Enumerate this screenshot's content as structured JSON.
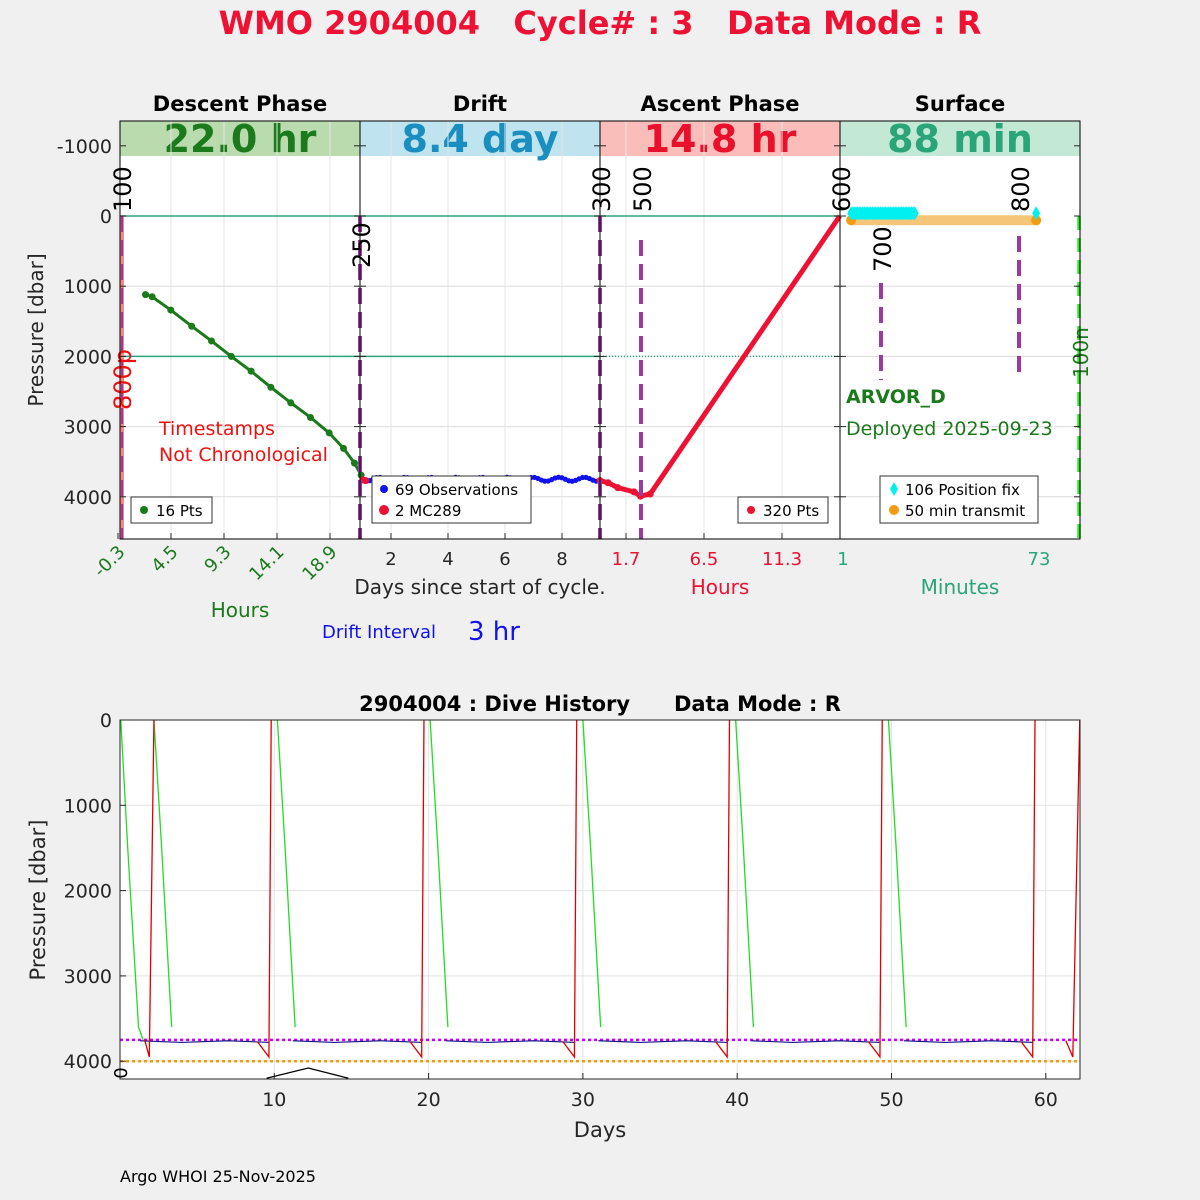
{
  "title": "WMO 2904004   Cycle# : 3   Data Mode : R",
  "top_axis": {
    "ylabel": "Pressure [dbar]",
    "yticks": [
      "-1000",
      "0",
      "1000",
      "2000",
      "3000",
      "4000"
    ]
  },
  "panels": [
    {
      "name": "Descent Phase",
      "duration": "22.0 hr",
      "band_color": "#b9dbae",
      "text_color": "#1b7a1b",
      "xticks": [
        "-0.3",
        "4.5",
        "9.3",
        "14.1",
        "18.9"
      ],
      "xlabel": "Hours",
      "legend": [
        "16 Pts"
      ],
      "annotation": "Timestamps\nNot Chronological",
      "marker_labels": [
        "100",
        "800p"
      ]
    },
    {
      "name": "Drift",
      "duration": "8.4 day",
      "band_color": "#bfe3ef",
      "text_color": "#1a8fbf",
      "xticks": [
        "2",
        "4",
        "6",
        "8"
      ],
      "xlabel": "Days since start of cycle.",
      "legend": [
        "69 Observations",
        "2 MC289"
      ],
      "marker_labels": [
        "250"
      ]
    },
    {
      "name": "Ascent Phase",
      "duration": "14.8 hr",
      "band_color": "#fbbdb9",
      "text_color": "#e8102a",
      "xticks": [
        "1.7",
        "6.5",
        "11.3"
      ],
      "xlabel": "Hours",
      "legend": [
        "320 Pts"
      ],
      "marker_labels": [
        "300",
        "500"
      ]
    },
    {
      "name": "Surface",
      "duration": "88 min",
      "band_color": "#c4e8d6",
      "text_color": "#2aa57a",
      "xticks": [
        "1",
        "73"
      ],
      "xlabel": "Minutes",
      "legend": [
        "106 Position fix",
        "50 min transmit"
      ],
      "marker_labels": [
        "600",
        "700",
        "800",
        "100n"
      ],
      "float_type": "ARVOR_D",
      "deployed": "Deployed 2025-09-23"
    }
  ],
  "drift_interval": {
    "label": "Drift Interval",
    "value": "3 hr"
  },
  "history": {
    "title": "2904004 : Dive History      Data Mode : R",
    "xlabel": "Days",
    "ylabel": "Pressure [dbar]",
    "xticks": [
      "10",
      "20",
      "30",
      "40",
      "50",
      "60"
    ],
    "yticks": [
      "0",
      "1000",
      "2000",
      "3000",
      "4000"
    ],
    "zero_label": "0"
  },
  "footer": "Argo WHOI 25-Nov-2025",
  "chart_data": [
    {
      "type": "line",
      "title": "Descent Phase",
      "xlabel": "Hours",
      "ylabel": "Pressure [dbar]",
      "ylim": [
        4600,
        -1300
      ],
      "xlim": [
        -0.3,
        22.5
      ],
      "x": [
        2.2,
        2.8,
        4.5,
        6.4,
        8.2,
        10.0,
        11.8,
        13.6,
        15.4,
        17.2,
        18.9,
        20.2,
        21.2,
        21.8
      ],
      "y": [
        1120,
        1150,
        1340,
        1570,
        1780,
        2000,
        2210,
        2440,
        2660,
        2870,
        3090,
        3310,
        3520,
        3690
      ]
    },
    {
      "type": "scatter",
      "title": "Drift",
      "xlabel": "Days since start of cycle.",
      "xlim": [
        0.9,
        9.3
      ],
      "series": [
        {
          "name": "69 Observations",
          "x_range": [
            1.0,
            9.3
          ],
          "y": 3750
        },
        {
          "name": "2 MC289",
          "x": [
            1.0,
            1.1
          ],
          "y": [
            3760,
            3770
          ]
        }
      ]
    },
    {
      "type": "line",
      "title": "Ascent Phase",
      "xlabel": "Hours",
      "xlim": [
        0.1,
        14.9
      ],
      "x": [
        0.1,
        0.6,
        1.2,
        2.2,
        2.6,
        3.2,
        14.9
      ],
      "y": [
        3770,
        3800,
        3870,
        3930,
        3990,
        3960,
        0
      ]
    },
    {
      "type": "scatter",
      "title": "Surface",
      "xlabel": "Minutes",
      "xlim": [
        1,
        89
      ],
      "series": [
        {
          "name": "106 Position fix",
          "x_range": [
            4,
            28
          ],
          "y": -40
        },
        {
          "name": "50 min transmit",
          "x_range": [
            4,
            72
          ],
          "y": 60
        }
      ]
    },
    {
      "type": "line",
      "title": "2904004 : Dive History      Data Mode : R",
      "xlabel": "Days",
      "ylabel": "Pressure [dbar]",
      "xlim": [
        0,
        62.2
      ],
      "ylim": [
        4200,
        0
      ],
      "reference_lines": [
        {
          "name": "drift depth",
          "y": 3750,
          "color": "#cc00ff"
        },
        {
          "name": "max depth",
          "y": 4000,
          "color": "#f39c12"
        }
      ],
      "cycle_start_days": [
        0.0,
        9.9,
        19.8,
        29.7,
        39.6,
        49.5,
        59.4
      ]
    }
  ]
}
